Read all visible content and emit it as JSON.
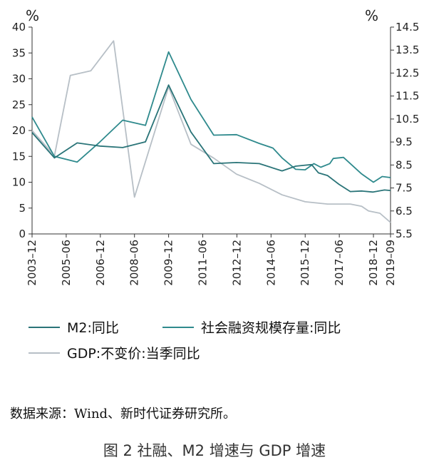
{
  "chart_data": {
    "type": "line",
    "left_unit": "%",
    "right_unit": "%",
    "y_left_range": [
      0,
      40
    ],
    "y_left_ticks": [
      "0",
      "5",
      "10",
      "15",
      "20",
      "25",
      "30",
      "35",
      "40"
    ],
    "y_right_range": [
      5.5,
      14.5
    ],
    "y_right_ticks": [
      "5.5",
      "6.5",
      "7.5",
      "8.5",
      "9.5",
      "10.5",
      "11.5",
      "12.5",
      "13.5",
      "14.5"
    ],
    "x_range": [
      2003.917,
      2019.667
    ],
    "x_ticks": [
      {
        "label": "2003–12",
        "value": 2003.917
      },
      {
        "label": "2005–06",
        "value": 2005.417
      },
      {
        "label": "2006–12",
        "value": 2006.917
      },
      {
        "label": "2008–06",
        "value": 2008.417
      },
      {
        "label": "2009–12",
        "value": 2009.917
      },
      {
        "label": "2011–06",
        "value": 2011.417
      },
      {
        "label": "2012–12",
        "value": 2012.917
      },
      {
        "label": "2014–06",
        "value": 2014.417
      },
      {
        "label": "2015–12",
        "value": 2015.917
      },
      {
        "label": "2017–06",
        "value": 2017.417
      },
      {
        "label": "2018–12",
        "value": 2018.917
      },
      {
        "label": "2019–09",
        "value": 2019.667
      }
    ],
    "series": [
      {
        "name": "M2:同比",
        "axis": "left",
        "color": "#2a7478",
        "points": [
          [
            2003.917,
            19.6
          ],
          [
            2004.9,
            14.7
          ],
          [
            2005.9,
            17.6
          ],
          [
            2006.9,
            17.0
          ],
          [
            2007.9,
            16.7
          ],
          [
            2008.9,
            17.8
          ],
          [
            2009.917,
            28.8
          ],
          [
            2010.9,
            19.7
          ],
          [
            2011.9,
            13.6
          ],
          [
            2012.9,
            13.8
          ],
          [
            2013.9,
            13.6
          ],
          [
            2014.9,
            12.2
          ],
          [
            2015.5,
            13.1
          ],
          [
            2015.917,
            13.3
          ],
          [
            2016.2,
            13.4
          ],
          [
            2016.5,
            11.8
          ],
          [
            2016.9,
            11.3
          ],
          [
            2017.4,
            9.6
          ],
          [
            2017.9,
            8.2
          ],
          [
            2018.4,
            8.3
          ],
          [
            2018.9,
            8.1
          ],
          [
            2019.4,
            8.5
          ],
          [
            2019.667,
            8.4
          ]
        ]
      },
      {
        "name": "社会融资规模存量:同比",
        "axis": "left",
        "color": "#2f8a8d",
        "points": [
          [
            2003.917,
            22.6
          ],
          [
            2004.9,
            15.0
          ],
          [
            2005.9,
            13.9
          ],
          [
            2006.9,
            17.8
          ],
          [
            2007.9,
            22.0
          ],
          [
            2008.9,
            21.0
          ],
          [
            2009.917,
            35.2
          ],
          [
            2010.9,
            26.0
          ],
          [
            2011.9,
            19.1
          ],
          [
            2012.9,
            19.2
          ],
          [
            2013.9,
            17.5
          ],
          [
            2014.5,
            16.6
          ],
          [
            2014.9,
            14.7
          ],
          [
            2015.5,
            12.5
          ],
          [
            2015.917,
            12.4
          ],
          [
            2016.3,
            13.6
          ],
          [
            2016.6,
            12.9
          ],
          [
            2017.0,
            13.6
          ],
          [
            2017.15,
            14.6
          ],
          [
            2017.6,
            14.8
          ],
          [
            2017.9,
            13.6
          ],
          [
            2018.4,
            11.6
          ],
          [
            2018.917,
            10.0
          ],
          [
            2019.3,
            11.1
          ],
          [
            2019.667,
            10.9
          ]
        ]
      },
      {
        "name": "GDP:不变价:当季同比",
        "axis": "right",
        "color": "#b7bfc6",
        "points": [
          [
            2003.917,
            10.0
          ],
          [
            2004.9,
            8.9
          ],
          [
            2005.6,
            12.4
          ],
          [
            2006.5,
            12.6
          ],
          [
            2007.5,
            13.9
          ],
          [
            2008.417,
            7.1
          ],
          [
            2009.917,
            11.9
          ],
          [
            2010.9,
            9.4
          ],
          [
            2011.9,
            8.8
          ],
          [
            2012.9,
            8.1
          ],
          [
            2013.9,
            7.7
          ],
          [
            2014.9,
            7.2
          ],
          [
            2015.917,
            6.9
          ],
          [
            2016.9,
            6.8
          ],
          [
            2017.9,
            6.8
          ],
          [
            2018.4,
            6.7
          ],
          [
            2018.7,
            6.5
          ],
          [
            2019.2,
            6.4
          ],
          [
            2019.667,
            6.0
          ]
        ]
      }
    ],
    "legend": [
      {
        "label": "M2:同比",
        "color": "#2a7478"
      },
      {
        "label": "社会融资规模存量:同比",
        "color": "#2f8a8d"
      },
      {
        "label": "GDP:不变价:当季同比",
        "color": "#b7bfc6"
      }
    ]
  },
  "source_text": "数据来源：Wind、新时代证券研究所。",
  "caption": "图 2 社融、M2 增速与 GDP 增速"
}
